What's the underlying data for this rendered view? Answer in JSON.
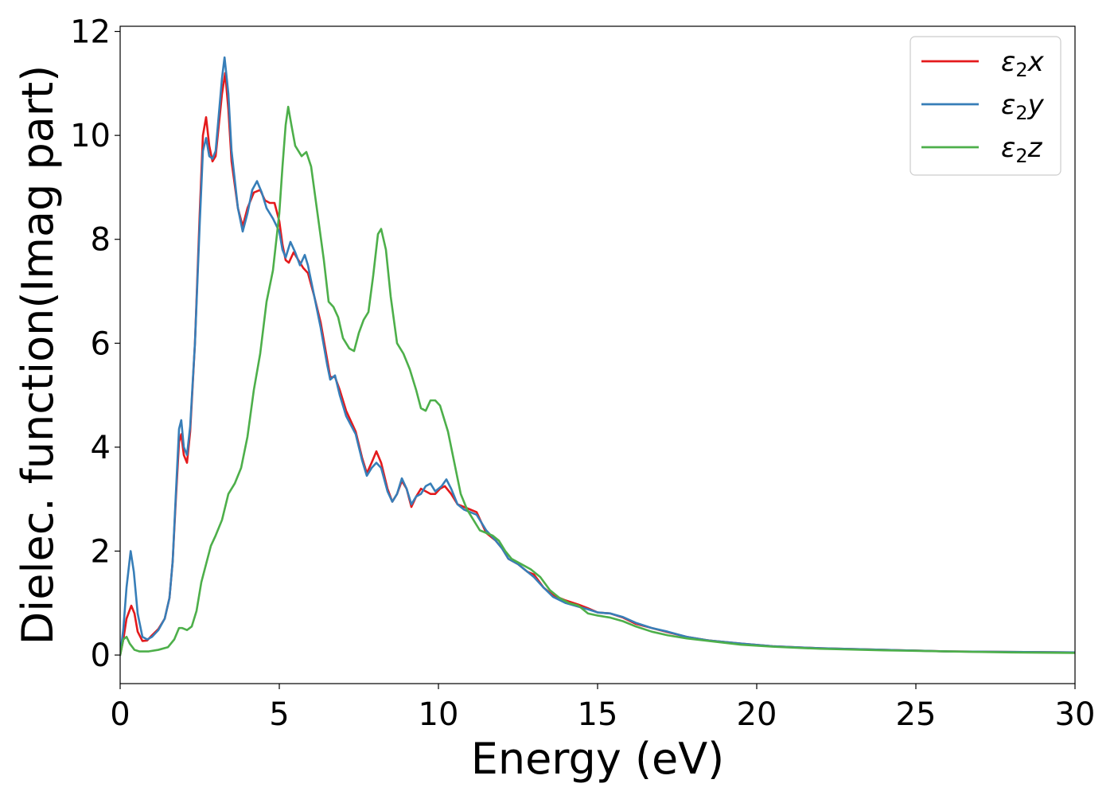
{
  "chart_data": {
    "type": "line",
    "title": "",
    "xlabel": "Energy (eV)",
    "ylabel": "Dielec. function(Imag part)",
    "xlim": [
      0,
      30
    ],
    "ylim": [
      -0.55,
      12.1
    ],
    "xticks": [
      0,
      5,
      10,
      15,
      20,
      25,
      30
    ],
    "yticks": [
      0,
      2,
      4,
      6,
      8,
      10,
      12
    ],
    "grid": false,
    "legend_position": "top-right",
    "series": [
      {
        "name": "ε2x",
        "legend": {
          "base": "ε",
          "sub": "2",
          "suffix": "x"
        },
        "color": "#e41a1c",
        "points": [
          [
            0,
            0
          ],
          [
            0.1,
            0.3
          ],
          [
            0.2,
            0.7
          ],
          [
            0.35,
            0.95
          ],
          [
            0.45,
            0.8
          ],
          [
            0.55,
            0.45
          ],
          [
            0.7,
            0.27
          ],
          [
            0.85,
            0.28
          ],
          [
            1.0,
            0.38
          ],
          [
            1.2,
            0.5
          ],
          [
            1.4,
            0.7
          ],
          [
            1.55,
            1.1
          ],
          [
            1.65,
            1.8
          ],
          [
            1.75,
            3.0
          ],
          [
            1.85,
            4.1
          ],
          [
            1.92,
            4.25
          ],
          [
            2.0,
            3.85
          ],
          [
            2.1,
            3.7
          ],
          [
            2.2,
            4.3
          ],
          [
            2.35,
            6.0
          ],
          [
            2.5,
            8.5
          ],
          [
            2.6,
            10.0
          ],
          [
            2.7,
            10.35
          ],
          [
            2.8,
            9.8
          ],
          [
            2.9,
            9.5
          ],
          [
            3.0,
            9.6
          ],
          [
            3.1,
            10.2
          ],
          [
            3.2,
            10.8
          ],
          [
            3.3,
            11.2
          ],
          [
            3.4,
            10.5
          ],
          [
            3.5,
            9.5
          ],
          [
            3.7,
            8.6
          ],
          [
            3.85,
            8.25
          ],
          [
            4.0,
            8.6
          ],
          [
            4.2,
            8.9
          ],
          [
            4.4,
            8.95
          ],
          [
            4.55,
            8.75
          ],
          [
            4.7,
            8.7
          ],
          [
            4.85,
            8.7
          ],
          [
            5.0,
            8.35
          ],
          [
            5.1,
            7.9
          ],
          [
            5.2,
            7.6
          ],
          [
            5.3,
            7.55
          ],
          [
            5.45,
            7.75
          ],
          [
            5.6,
            7.6
          ],
          [
            5.75,
            7.45
          ],
          [
            5.9,
            7.35
          ],
          [
            6.1,
            6.9
          ],
          [
            6.3,
            6.4
          ],
          [
            6.5,
            5.7
          ],
          [
            6.6,
            5.35
          ],
          [
            6.75,
            5.35
          ],
          [
            6.9,
            5.1
          ],
          [
            7.1,
            4.7
          ],
          [
            7.4,
            4.3
          ],
          [
            7.6,
            3.8
          ],
          [
            7.75,
            3.5
          ],
          [
            7.9,
            3.7
          ],
          [
            8.05,
            3.92
          ],
          [
            8.2,
            3.7
          ],
          [
            8.4,
            3.2
          ],
          [
            8.55,
            2.95
          ],
          [
            8.7,
            3.1
          ],
          [
            8.85,
            3.35
          ],
          [
            9.0,
            3.2
          ],
          [
            9.15,
            2.85
          ],
          [
            9.3,
            3.05
          ],
          [
            9.45,
            3.2
          ],
          [
            9.6,
            3.15
          ],
          [
            9.75,
            3.1
          ],
          [
            9.9,
            3.1
          ],
          [
            10.05,
            3.2
          ],
          [
            10.2,
            3.25
          ],
          [
            10.4,
            3.1
          ],
          [
            10.6,
            2.9
          ],
          [
            10.8,
            2.85
          ],
          [
            11.0,
            2.8
          ],
          [
            11.2,
            2.75
          ],
          [
            11.5,
            2.35
          ],
          [
            11.8,
            2.2
          ],
          [
            12.0,
            2.05
          ],
          [
            12.2,
            1.85
          ],
          [
            12.5,
            1.75
          ],
          [
            12.8,
            1.6
          ],
          [
            13.0,
            1.55
          ],
          [
            13.3,
            1.3
          ],
          [
            13.6,
            1.15
          ],
          [
            14.0,
            1.05
          ],
          [
            14.4,
            0.97
          ],
          [
            14.7,
            0.9
          ],
          [
            15.0,
            0.82
          ],
          [
            15.4,
            0.8
          ],
          [
            15.8,
            0.72
          ],
          [
            16.2,
            0.6
          ],
          [
            16.7,
            0.52
          ],
          [
            17.2,
            0.44
          ],
          [
            17.8,
            0.35
          ],
          [
            18.5,
            0.28
          ],
          [
            19.5,
            0.22
          ],
          [
            20.5,
            0.17
          ],
          [
            22,
            0.13
          ],
          [
            24,
            0.1
          ],
          [
            26,
            0.07
          ],
          [
            28,
            0.06
          ],
          [
            30,
            0.05
          ]
        ]
      },
      {
        "name": "ε2y",
        "legend": {
          "base": "ε",
          "sub": "2",
          "suffix": "y"
        },
        "color": "#377eb8",
        "points": [
          [
            0,
            0
          ],
          [
            0.1,
            0.5
          ],
          [
            0.2,
            1.3
          ],
          [
            0.33,
            2.0
          ],
          [
            0.43,
            1.6
          ],
          [
            0.55,
            0.8
          ],
          [
            0.7,
            0.35
          ],
          [
            0.85,
            0.3
          ],
          [
            1.0,
            0.35
          ],
          [
            1.2,
            0.48
          ],
          [
            1.4,
            0.7
          ],
          [
            1.55,
            1.1
          ],
          [
            1.65,
            1.8
          ],
          [
            1.75,
            3.1
          ],
          [
            1.85,
            4.35
          ],
          [
            1.92,
            4.52
          ],
          [
            2.0,
            4.0
          ],
          [
            2.1,
            3.85
          ],
          [
            2.2,
            4.4
          ],
          [
            2.35,
            6.0
          ],
          [
            2.5,
            8.3
          ],
          [
            2.6,
            9.7
          ],
          [
            2.7,
            9.95
          ],
          [
            2.8,
            9.6
          ],
          [
            2.9,
            9.55
          ],
          [
            3.0,
            9.7
          ],
          [
            3.1,
            10.4
          ],
          [
            3.2,
            11.1
          ],
          [
            3.28,
            11.5
          ],
          [
            3.4,
            10.8
          ],
          [
            3.5,
            9.7
          ],
          [
            3.7,
            8.6
          ],
          [
            3.85,
            8.15
          ],
          [
            4.0,
            8.5
          ],
          [
            4.15,
            8.95
          ],
          [
            4.3,
            9.12
          ],
          [
            4.45,
            8.9
          ],
          [
            4.6,
            8.6
          ],
          [
            4.8,
            8.4
          ],
          [
            5.0,
            8.15
          ],
          [
            5.1,
            7.8
          ],
          [
            5.2,
            7.65
          ],
          [
            5.35,
            7.95
          ],
          [
            5.5,
            7.75
          ],
          [
            5.65,
            7.5
          ],
          [
            5.8,
            7.7
          ],
          [
            5.9,
            7.5
          ],
          [
            6.1,
            6.9
          ],
          [
            6.3,
            6.3
          ],
          [
            6.5,
            5.6
          ],
          [
            6.6,
            5.3
          ],
          [
            6.75,
            5.38
          ],
          [
            6.9,
            5.0
          ],
          [
            7.1,
            4.6
          ],
          [
            7.4,
            4.25
          ],
          [
            7.6,
            3.75
          ],
          [
            7.75,
            3.45
          ],
          [
            7.9,
            3.6
          ],
          [
            8.05,
            3.7
          ],
          [
            8.2,
            3.6
          ],
          [
            8.4,
            3.15
          ],
          [
            8.55,
            2.95
          ],
          [
            8.7,
            3.1
          ],
          [
            8.85,
            3.4
          ],
          [
            9.0,
            3.2
          ],
          [
            9.15,
            2.9
          ],
          [
            9.3,
            3.05
          ],
          [
            9.45,
            3.1
          ],
          [
            9.6,
            3.25
          ],
          [
            9.75,
            3.3
          ],
          [
            9.9,
            3.15
          ],
          [
            10.1,
            3.25
          ],
          [
            10.25,
            3.38
          ],
          [
            10.4,
            3.2
          ],
          [
            10.6,
            2.9
          ],
          [
            10.8,
            2.8
          ],
          [
            11.0,
            2.75
          ],
          [
            11.2,
            2.7
          ],
          [
            11.5,
            2.4
          ],
          [
            11.8,
            2.2
          ],
          [
            12.0,
            2.05
          ],
          [
            12.2,
            1.85
          ],
          [
            12.5,
            1.75
          ],
          [
            12.8,
            1.6
          ],
          [
            13.0,
            1.5
          ],
          [
            13.3,
            1.3
          ],
          [
            13.6,
            1.12
          ],
          [
            14.0,
            1.0
          ],
          [
            14.4,
            0.93
          ],
          [
            14.7,
            0.88
          ],
          [
            15.0,
            0.82
          ],
          [
            15.4,
            0.8
          ],
          [
            15.8,
            0.73
          ],
          [
            16.2,
            0.62
          ],
          [
            16.7,
            0.52
          ],
          [
            17.2,
            0.45
          ],
          [
            17.8,
            0.35
          ],
          [
            18.5,
            0.28
          ],
          [
            19.5,
            0.22
          ],
          [
            20.5,
            0.17
          ],
          [
            22,
            0.13
          ],
          [
            24,
            0.1
          ],
          [
            26,
            0.07
          ],
          [
            28,
            0.06
          ],
          [
            30,
            0.05
          ]
        ]
      },
      {
        "name": "ε2z",
        "legend": {
          "base": "ε",
          "sub": "2",
          "suffix": "z"
        },
        "color": "#4daf4a",
        "points": [
          [
            0,
            0
          ],
          [
            0.1,
            0.3
          ],
          [
            0.2,
            0.35
          ],
          [
            0.3,
            0.22
          ],
          [
            0.45,
            0.1
          ],
          [
            0.6,
            0.07
          ],
          [
            0.9,
            0.07
          ],
          [
            1.2,
            0.1
          ],
          [
            1.5,
            0.15
          ],
          [
            1.7,
            0.3
          ],
          [
            1.85,
            0.52
          ],
          [
            1.95,
            0.52
          ],
          [
            2.1,
            0.48
          ],
          [
            2.25,
            0.55
          ],
          [
            2.4,
            0.85
          ],
          [
            2.55,
            1.4
          ],
          [
            2.7,
            1.75
          ],
          [
            2.85,
            2.1
          ],
          [
            3.0,
            2.3
          ],
          [
            3.2,
            2.6
          ],
          [
            3.4,
            3.1
          ],
          [
            3.6,
            3.3
          ],
          [
            3.8,
            3.6
          ],
          [
            4.0,
            4.2
          ],
          [
            4.2,
            5.1
          ],
          [
            4.4,
            5.8
          ],
          [
            4.6,
            6.8
          ],
          [
            4.8,
            7.4
          ],
          [
            5.0,
            8.5
          ],
          [
            5.1,
            9.4
          ],
          [
            5.2,
            10.2
          ],
          [
            5.28,
            10.55
          ],
          [
            5.38,
            10.2
          ],
          [
            5.5,
            9.8
          ],
          [
            5.7,
            9.6
          ],
          [
            5.85,
            9.68
          ],
          [
            6.0,
            9.4
          ],
          [
            6.2,
            8.5
          ],
          [
            6.4,
            7.6
          ],
          [
            6.55,
            6.8
          ],
          [
            6.7,
            6.7
          ],
          [
            6.85,
            6.5
          ],
          [
            7.0,
            6.1
          ],
          [
            7.2,
            5.9
          ],
          [
            7.35,
            5.85
          ],
          [
            7.5,
            6.2
          ],
          [
            7.65,
            6.45
          ],
          [
            7.8,
            6.6
          ],
          [
            7.95,
            7.3
          ],
          [
            8.1,
            8.1
          ],
          [
            8.2,
            8.2
          ],
          [
            8.35,
            7.8
          ],
          [
            8.5,
            6.9
          ],
          [
            8.7,
            6.0
          ],
          [
            8.9,
            5.8
          ],
          [
            9.1,
            5.5
          ],
          [
            9.3,
            5.1
          ],
          [
            9.45,
            4.75
          ],
          [
            9.6,
            4.7
          ],
          [
            9.75,
            4.9
          ],
          [
            9.9,
            4.9
          ],
          [
            10.05,
            4.8
          ],
          [
            10.3,
            4.3
          ],
          [
            10.5,
            3.7
          ],
          [
            10.7,
            3.1
          ],
          [
            10.9,
            2.8
          ],
          [
            11.1,
            2.6
          ],
          [
            11.3,
            2.4
          ],
          [
            11.5,
            2.35
          ],
          [
            11.7,
            2.3
          ],
          [
            11.9,
            2.2
          ],
          [
            12.1,
            2.0
          ],
          [
            12.3,
            1.85
          ],
          [
            12.6,
            1.75
          ],
          [
            12.9,
            1.65
          ],
          [
            13.2,
            1.5
          ],
          [
            13.5,
            1.25
          ],
          [
            13.8,
            1.1
          ],
          [
            14.1,
            1.0
          ],
          [
            14.4,
            0.95
          ],
          [
            14.7,
            0.8
          ],
          [
            15.0,
            0.76
          ],
          [
            15.4,
            0.72
          ],
          [
            15.8,
            0.65
          ],
          [
            16.2,
            0.55
          ],
          [
            16.7,
            0.45
          ],
          [
            17.2,
            0.38
          ],
          [
            17.8,
            0.32
          ],
          [
            18.5,
            0.27
          ],
          [
            19.5,
            0.2
          ],
          [
            20.5,
            0.16
          ],
          [
            22,
            0.12
          ],
          [
            24,
            0.09
          ],
          [
            26,
            0.07
          ],
          [
            28,
            0.05
          ],
          [
            30,
            0.04
          ]
        ]
      }
    ]
  }
}
